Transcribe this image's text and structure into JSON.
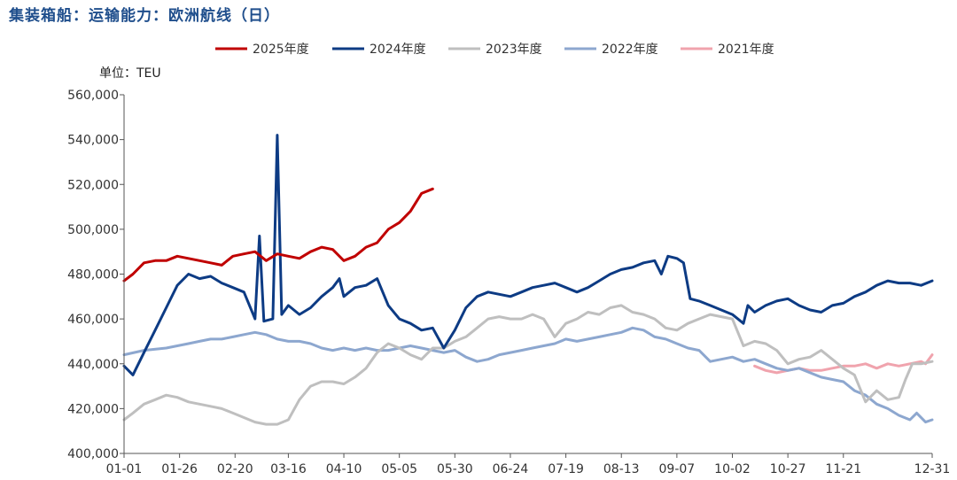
{
  "chart_data": {
    "type": "line",
    "title": "集装箱船：运输能力：欧洲航线（日）",
    "unit_label": "单位：TEU",
    "ylim": [
      400000,
      560000
    ],
    "y_ticks": [
      "400,000",
      "420,000",
      "440,000",
      "460,000",
      "480,000",
      "500,000",
      "520,000",
      "540,000",
      "560,000"
    ],
    "y_tick_values": [
      400000,
      420000,
      440000,
      460000,
      480000,
      500000,
      520000,
      540000,
      560000
    ],
    "x_range": [
      1,
      365
    ],
    "x_ticks": [
      {
        "day": 1,
        "label": "01-01"
      },
      {
        "day": 26,
        "label": "01-26"
      },
      {
        "day": 51,
        "label": "02-20"
      },
      {
        "day": 75,
        "label": "03-16"
      },
      {
        "day": 100,
        "label": "04-10"
      },
      {
        "day": 125,
        "label": "05-05"
      },
      {
        "day": 150,
        "label": "05-30"
      },
      {
        "day": 175,
        "label": "06-24"
      },
      {
        "day": 200,
        "label": "07-19"
      },
      {
        "day": 225,
        "label": "08-13"
      },
      {
        "day": 250,
        "label": "09-07"
      },
      {
        "day": 275,
        "label": "10-02"
      },
      {
        "day": 300,
        "label": "10-27"
      },
      {
        "day": 325,
        "label": "11-21"
      },
      {
        "day": 365,
        "label": "12-31"
      }
    ],
    "legend_position": "top",
    "grid": false,
    "series": [
      {
        "name": "2025年度",
        "color": "#c00000",
        "width": 3,
        "points": [
          [
            1,
            477000
          ],
          [
            5,
            480000
          ],
          [
            10,
            485000
          ],
          [
            15,
            486000
          ],
          [
            20,
            486000
          ],
          [
            25,
            488000
          ],
          [
            30,
            487000
          ],
          [
            35,
            486000
          ],
          [
            40,
            485000
          ],
          [
            45,
            484000
          ],
          [
            50,
            488000
          ],
          [
            55,
            489000
          ],
          [
            60,
            490000
          ],
          [
            65,
            486000
          ],
          [
            70,
            489000
          ],
          [
            75,
            488000
          ],
          [
            80,
            487000
          ],
          [
            85,
            490000
          ],
          [
            90,
            492000
          ],
          [
            95,
            491000
          ],
          [
            100,
            486000
          ],
          [
            105,
            488000
          ],
          [
            110,
            492000
          ],
          [
            115,
            494000
          ],
          [
            120,
            500000
          ],
          [
            125,
            503000
          ],
          [
            130,
            508000
          ],
          [
            135,
            516000
          ],
          [
            140,
            518000
          ]
        ]
      },
      {
        "name": "2024年度",
        "color": "#0d3b84",
        "width": 3,
        "points": [
          [
            1,
            439000
          ],
          [
            5,
            435000
          ],
          [
            10,
            445000
          ],
          [
            15,
            455000
          ],
          [
            20,
            465000
          ],
          [
            25,
            475000
          ],
          [
            30,
            480000
          ],
          [
            35,
            478000
          ],
          [
            40,
            479000
          ],
          [
            45,
            476000
          ],
          [
            50,
            474000
          ],
          [
            55,
            472000
          ],
          [
            60,
            460000
          ],
          [
            62,
            497000
          ],
          [
            64,
            459000
          ],
          [
            68,
            460000
          ],
          [
            70,
            542000
          ],
          [
            72,
            462000
          ],
          [
            75,
            466000
          ],
          [
            80,
            462000
          ],
          [
            85,
            465000
          ],
          [
            90,
            470000
          ],
          [
            95,
            474000
          ],
          [
            98,
            478000
          ],
          [
            100,
            470000
          ],
          [
            105,
            474000
          ],
          [
            110,
            475000
          ],
          [
            115,
            478000
          ],
          [
            120,
            466000
          ],
          [
            125,
            460000
          ],
          [
            130,
            458000
          ],
          [
            135,
            455000
          ],
          [
            140,
            456000
          ],
          [
            145,
            447000
          ],
          [
            150,
            455000
          ],
          [
            155,
            465000
          ],
          [
            160,
            470000
          ],
          [
            165,
            472000
          ],
          [
            170,
            471000
          ],
          [
            175,
            470000
          ],
          [
            180,
            472000
          ],
          [
            185,
            474000
          ],
          [
            190,
            475000
          ],
          [
            195,
            476000
          ],
          [
            200,
            474000
          ],
          [
            205,
            472000
          ],
          [
            210,
            474000
          ],
          [
            215,
            477000
          ],
          [
            220,
            480000
          ],
          [
            225,
            482000
          ],
          [
            230,
            483000
          ],
          [
            235,
            485000
          ],
          [
            240,
            486000
          ],
          [
            243,
            480000
          ],
          [
            246,
            488000
          ],
          [
            250,
            487000
          ],
          [
            253,
            485000
          ],
          [
            256,
            469000
          ],
          [
            260,
            468000
          ],
          [
            265,
            466000
          ],
          [
            270,
            464000
          ],
          [
            275,
            462000
          ],
          [
            280,
            458000
          ],
          [
            282,
            466000
          ],
          [
            285,
            463000
          ],
          [
            290,
            466000
          ],
          [
            295,
            468000
          ],
          [
            300,
            469000
          ],
          [
            305,
            466000
          ],
          [
            310,
            464000
          ],
          [
            315,
            463000
          ],
          [
            320,
            466000
          ],
          [
            325,
            467000
          ],
          [
            330,
            470000
          ],
          [
            335,
            472000
          ],
          [
            340,
            475000
          ],
          [
            345,
            477000
          ],
          [
            350,
            476000
          ],
          [
            355,
            476000
          ],
          [
            360,
            475000
          ],
          [
            365,
            477000
          ]
        ]
      },
      {
        "name": "2023年度",
        "color": "#bfbfbf",
        "width": 3,
        "points": [
          [
            1,
            415000
          ],
          [
            5,
            418000
          ],
          [
            10,
            422000
          ],
          [
            15,
            424000
          ],
          [
            20,
            426000
          ],
          [
            25,
            425000
          ],
          [
            30,
            423000
          ],
          [
            35,
            422000
          ],
          [
            40,
            421000
          ],
          [
            45,
            420000
          ],
          [
            50,
            418000
          ],
          [
            55,
            416000
          ],
          [
            60,
            414000
          ],
          [
            65,
            413000
          ],
          [
            70,
            413000
          ],
          [
            75,
            415000
          ],
          [
            80,
            424000
          ],
          [
            85,
            430000
          ],
          [
            90,
            432000
          ],
          [
            95,
            432000
          ],
          [
            100,
            431000
          ],
          [
            105,
            434000
          ],
          [
            110,
            438000
          ],
          [
            115,
            445000
          ],
          [
            120,
            449000
          ],
          [
            125,
            447000
          ],
          [
            130,
            444000
          ],
          [
            135,
            442000
          ],
          [
            140,
            447000
          ],
          [
            145,
            447000
          ],
          [
            150,
            450000
          ],
          [
            155,
            452000
          ],
          [
            160,
            456000
          ],
          [
            165,
            460000
          ],
          [
            170,
            461000
          ],
          [
            175,
            460000
          ],
          [
            180,
            460000
          ],
          [
            185,
            462000
          ],
          [
            190,
            460000
          ],
          [
            195,
            452000
          ],
          [
            200,
            458000
          ],
          [
            205,
            460000
          ],
          [
            210,
            463000
          ],
          [
            215,
            462000
          ],
          [
            220,
            465000
          ],
          [
            225,
            466000
          ],
          [
            230,
            463000
          ],
          [
            235,
            462000
          ],
          [
            240,
            460000
          ],
          [
            245,
            456000
          ],
          [
            250,
            455000
          ],
          [
            255,
            458000
          ],
          [
            260,
            460000
          ],
          [
            265,
            462000
          ],
          [
            270,
            461000
          ],
          [
            275,
            460000
          ],
          [
            280,
            448000
          ],
          [
            285,
            450000
          ],
          [
            290,
            449000
          ],
          [
            295,
            446000
          ],
          [
            300,
            440000
          ],
          [
            305,
            442000
          ],
          [
            310,
            443000
          ],
          [
            315,
            446000
          ],
          [
            320,
            442000
          ],
          [
            325,
            438000
          ],
          [
            330,
            435000
          ],
          [
            335,
            423000
          ],
          [
            340,
            428000
          ],
          [
            345,
            424000
          ],
          [
            350,
            425000
          ],
          [
            353,
            433000
          ],
          [
            356,
            440000
          ],
          [
            360,
            440000
          ],
          [
            365,
            441000
          ]
        ]
      },
      {
        "name": "2022年度",
        "color": "#8da7cf",
        "width": 3,
        "points": [
          [
            1,
            444000
          ],
          [
            10,
            446000
          ],
          [
            20,
            447000
          ],
          [
            25,
            448000
          ],
          [
            30,
            449000
          ],
          [
            35,
            450000
          ],
          [
            40,
            451000
          ],
          [
            45,
            451000
          ],
          [
            50,
            452000
          ],
          [
            55,
            453000
          ],
          [
            60,
            454000
          ],
          [
            65,
            453000
          ],
          [
            70,
            451000
          ],
          [
            75,
            450000
          ],
          [
            80,
            450000
          ],
          [
            85,
            449000
          ],
          [
            90,
            447000
          ],
          [
            95,
            446000
          ],
          [
            100,
            447000
          ],
          [
            105,
            446000
          ],
          [
            110,
            447000
          ],
          [
            115,
            446000
          ],
          [
            120,
            446000
          ],
          [
            125,
            447000
          ],
          [
            130,
            448000
          ],
          [
            135,
            447000
          ],
          [
            140,
            446000
          ],
          [
            145,
            445000
          ],
          [
            150,
            446000
          ],
          [
            155,
            443000
          ],
          [
            160,
            441000
          ],
          [
            165,
            442000
          ],
          [
            170,
            444000
          ],
          [
            175,
            445000
          ],
          [
            180,
            446000
          ],
          [
            185,
            447000
          ],
          [
            190,
            448000
          ],
          [
            195,
            449000
          ],
          [
            200,
            451000
          ],
          [
            205,
            450000
          ],
          [
            210,
            451000
          ],
          [
            215,
            452000
          ],
          [
            220,
            453000
          ],
          [
            225,
            454000
          ],
          [
            230,
            456000
          ],
          [
            235,
            455000
          ],
          [
            240,
            452000
          ],
          [
            245,
            451000
          ],
          [
            250,
            449000
          ],
          [
            255,
            447000
          ],
          [
            260,
            446000
          ],
          [
            265,
            441000
          ],
          [
            270,
            442000
          ],
          [
            275,
            443000
          ],
          [
            280,
            441000
          ],
          [
            285,
            442000
          ],
          [
            290,
            440000
          ],
          [
            295,
            438000
          ],
          [
            300,
            437000
          ],
          [
            305,
            438000
          ],
          [
            310,
            436000
          ],
          [
            315,
            434000
          ],
          [
            320,
            433000
          ],
          [
            325,
            432000
          ],
          [
            330,
            428000
          ],
          [
            335,
            426000
          ],
          [
            340,
            422000
          ],
          [
            345,
            420000
          ],
          [
            350,
            417000
          ],
          [
            355,
            415000
          ],
          [
            358,
            418000
          ],
          [
            362,
            414000
          ],
          [
            365,
            415000
          ]
        ]
      },
      {
        "name": "2021年度",
        "color": "#f0a3ad",
        "width": 3,
        "points": [
          [
            285,
            439000
          ],
          [
            290,
            437000
          ],
          [
            295,
            436000
          ],
          [
            300,
            437000
          ],
          [
            305,
            438000
          ],
          [
            310,
            437000
          ],
          [
            315,
            437000
          ],
          [
            320,
            438000
          ],
          [
            325,
            439000
          ],
          [
            330,
            439000
          ],
          [
            335,
            440000
          ],
          [
            340,
            438000
          ],
          [
            345,
            440000
          ],
          [
            350,
            439000
          ],
          [
            355,
            440000
          ],
          [
            360,
            441000
          ],
          [
            362,
            440000
          ],
          [
            365,
            444000
          ]
        ]
      }
    ]
  }
}
